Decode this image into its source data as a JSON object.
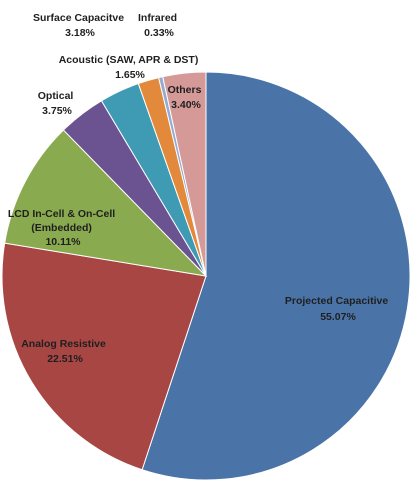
{
  "chart_data": {
    "type": "pie",
    "title": "",
    "slices": [
      {
        "name": "Projected Capacitive",
        "value": 55.07,
        "value_label": "55.07%",
        "color": "#4a74a8"
      },
      {
        "name": "Analog Resistive",
        "value": 22.51,
        "value_label": "22.51%",
        "color": "#a84644"
      },
      {
        "name": "LCD In-Cell & On-Cell (Embedded)",
        "value": 10.11,
        "value_label": "10.11%",
        "color": "#8aaa4f"
      },
      {
        "name": "Optical",
        "value": 3.75,
        "value_label": "3.75%",
        "color": "#6b5291"
      },
      {
        "name": "Surface Capacitve",
        "value": 3.18,
        "value_label": "3.18%",
        "color": "#3e9bb3"
      },
      {
        "name": "Acoustic (SAW, APR & DST)",
        "value": 1.65,
        "value_label": "1.65%",
        "color": "#e2893b"
      },
      {
        "name": "Infrared",
        "value": 0.33,
        "value_label": "0.33%",
        "color": "#95abd3"
      },
      {
        "name": "Others",
        "value": 3.4,
        "value_label": "3.40%",
        "color": "#d59a98"
      }
    ],
    "legend": "none",
    "start": "top, clockwise"
  }
}
